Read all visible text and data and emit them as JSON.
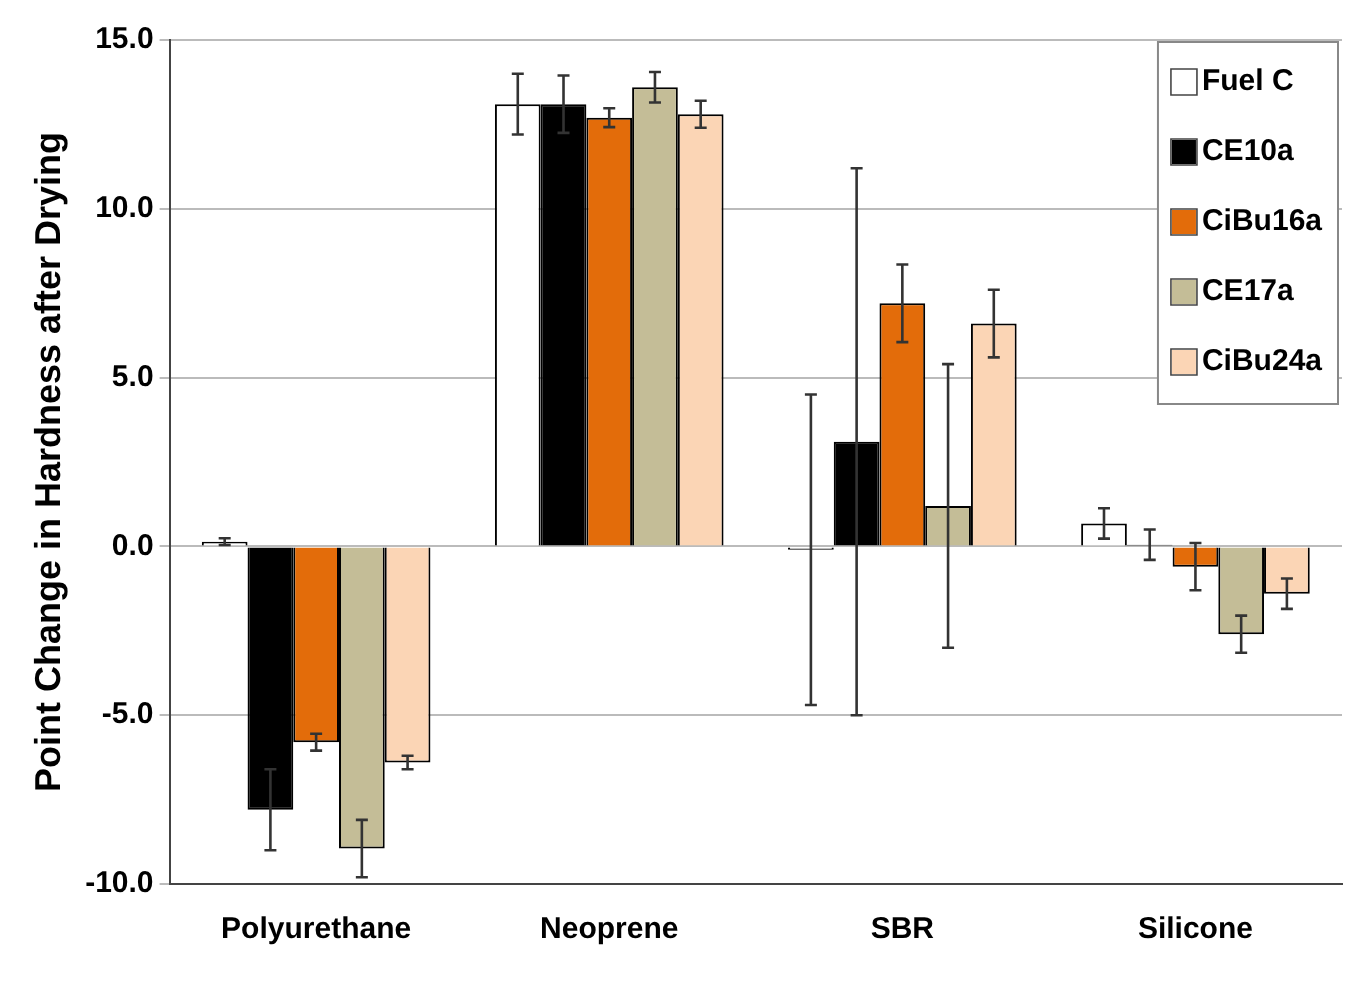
{
  "chart_data": {
    "type": "bar",
    "ylabel": "Point Change in Hardness after Drying",
    "categories": [
      "Polyurethane",
      "Neoprene",
      "SBR",
      "Silicone"
    ],
    "series": [
      {
        "name": "Fuel C",
        "color": "#ffffff",
        "values": [
          0.14,
          13.1,
          -0.1,
          0.68
        ],
        "errors": [
          0.1,
          0.9,
          4.6,
          0.45
        ]
      },
      {
        "name": "CE10a",
        "color": "#000000",
        "values": [
          -7.8,
          13.1,
          3.1,
          0.05
        ],
        "errors": [
          1.2,
          0.85,
          8.1,
          0.45
        ]
      },
      {
        "name": "CiBu16a",
        "color": "#e36c0a",
        "values": [
          -5.8,
          12.7,
          7.2,
          -0.6
        ],
        "errors": [
          0.25,
          0.28,
          1.15,
          0.7
        ]
      },
      {
        "name": "CE17a",
        "color": "#c4bd97",
        "values": [
          -8.95,
          13.6,
          1.2,
          -2.6
        ],
        "errors": [
          0.85,
          0.45,
          4.2,
          0.55
        ]
      },
      {
        "name": "CiBu24a",
        "color": "#fbd5b5",
        "values": [
          -6.4,
          12.8,
          6.6,
          -1.4
        ],
        "errors": [
          0.2,
          0.4,
          1.0,
          0.45
        ]
      }
    ],
    "ylim": [
      -10,
      15
    ],
    "yticks": [
      {
        "value": -10,
        "label": "-10.0"
      },
      {
        "value": -5,
        "label": "-5.0"
      },
      {
        "value": 0,
        "label": "0.0"
      },
      {
        "value": 5,
        "label": "5.0"
      },
      {
        "value": 10,
        "label": "10.0"
      },
      {
        "value": 15,
        "label": "15.0"
      }
    ],
    "grid": "y",
    "legend": "top right"
  }
}
